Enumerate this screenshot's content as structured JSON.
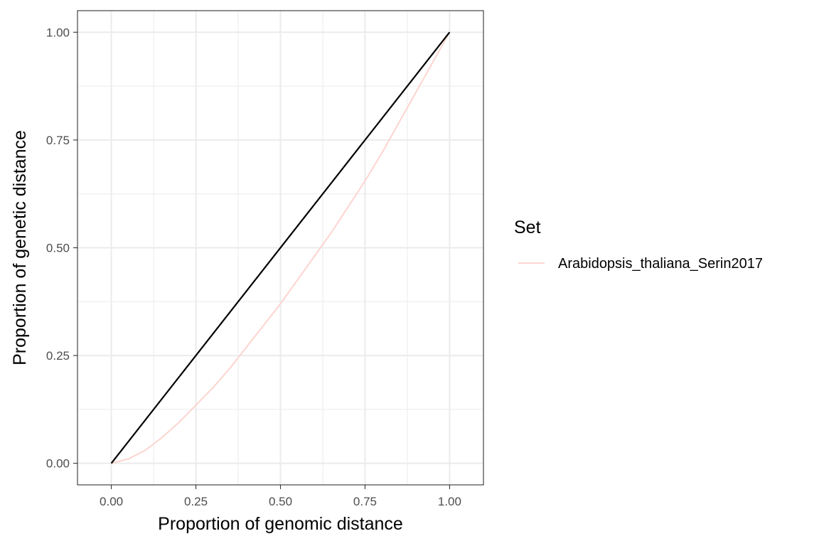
{
  "chart_data": {
    "type": "line",
    "xlabel": "Proportion of genomic distance",
    "ylabel": "Proportion of genetic distance",
    "xlim": [
      -0.1,
      1.1
    ],
    "ylim": [
      -0.05,
      1.05
    ],
    "x_ticks": [
      0.0,
      0.25,
      0.5,
      0.75,
      1.0
    ],
    "x_tick_labels": [
      "0.00",
      "0.25",
      "0.50",
      "0.75",
      "1.00"
    ],
    "y_ticks": [
      0.0,
      0.25,
      0.5,
      0.75,
      1.0
    ],
    "y_tick_labels": [
      "0.00",
      "0.25",
      "0.50",
      "0.75",
      "1.00"
    ],
    "grid": true,
    "legend": {
      "title": "Set",
      "position": "right",
      "entries": [
        "Arabidopsis_thaliana_Serin2017"
      ]
    },
    "series": [
      {
        "name": "Arabidopsis_thaliana_Serin2017",
        "color": "#fcd5cf",
        "x": [
          0.0,
          0.05,
          0.1,
          0.15,
          0.2,
          0.25,
          0.3,
          0.35,
          0.4,
          0.45,
          0.5,
          0.55,
          0.6,
          0.65,
          0.7,
          0.75,
          0.8,
          0.85,
          0.9,
          0.95,
          1.0
        ],
        "y": [
          0.0,
          0.01,
          0.03,
          0.06,
          0.095,
          0.135,
          0.175,
          0.22,
          0.27,
          0.32,
          0.37,
          0.425,
          0.48,
          0.535,
          0.595,
          0.655,
          0.72,
          0.79,
          0.86,
          0.93,
          1.0
        ]
      },
      {
        "color": "#000000",
        "x": [
          0.0,
          1.0
        ],
        "y": [
          0.0,
          1.0
        ]
      }
    ]
  }
}
